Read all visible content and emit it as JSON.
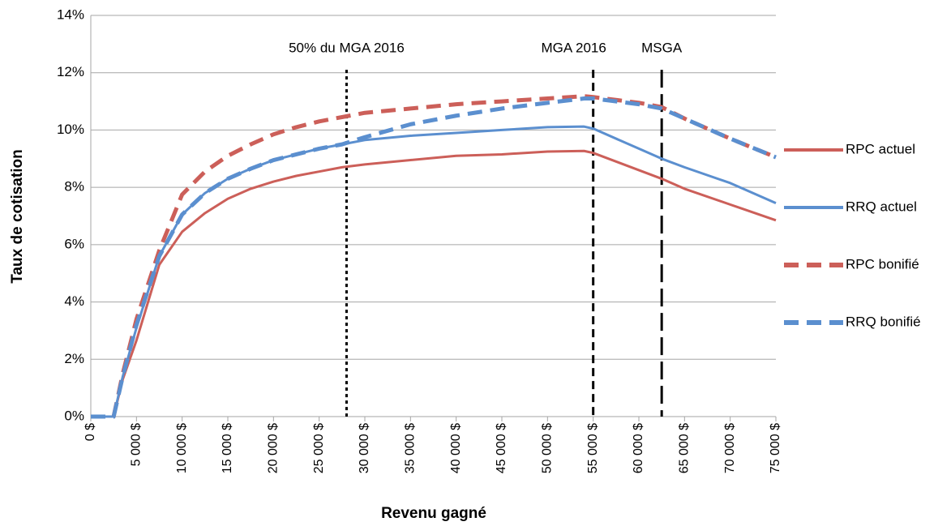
{
  "chart_data": {
    "type": "line",
    "y_label": "Taux de cotisation",
    "x_label": "Revenu gagné",
    "x": [
      0,
      2500,
      3500,
      5000,
      7500,
      10000,
      12500,
      15000,
      17500,
      20000,
      22500,
      25000,
      27500,
      30000,
      35000,
      40000,
      45000,
      50000,
      54000,
      55000,
      60000,
      62500,
      65000,
      70000,
      75000
    ],
    "series": [
      {
        "name": "RPC actuel",
        "color": "#cc5f59",
        "dash": "solid",
        "values": [
          0,
          0,
          1.3,
          2.66,
          5.3,
          6.45,
          7.1,
          7.6,
          7.95,
          8.2,
          8.4,
          8.55,
          8.7,
          8.8,
          8.95,
          9.1,
          9.15,
          9.25,
          9.27,
          9.2,
          8.6,
          8.3,
          7.95,
          7.4,
          6.85
        ]
      },
      {
        "name": "RRQ actuel",
        "color": "#5b8fcf",
        "dash": "solid",
        "values": [
          0,
          0,
          1.4,
          3.1,
          5.6,
          7.05,
          7.8,
          8.3,
          8.65,
          8.95,
          9.15,
          9.35,
          9.5,
          9.65,
          9.8,
          9.9,
          10.0,
          10.1,
          10.12,
          10.05,
          9.35,
          9.0,
          8.7,
          8.15,
          7.45
        ]
      },
      {
        "name": "RPC bonifié",
        "color": "#cc5f59",
        "dash": "dashed",
        "values": [
          0,
          0,
          1.5,
          3.4,
          5.8,
          7.75,
          8.55,
          9.1,
          9.5,
          9.85,
          10.1,
          10.3,
          10.45,
          10.6,
          10.75,
          10.9,
          11.0,
          11.1,
          11.18,
          11.15,
          10.95,
          10.8,
          10.4,
          9.7,
          9.05
        ]
      },
      {
        "name": "RRQ bonifié",
        "color": "#5b8fcf",
        "dash": "dashed",
        "values": [
          0,
          0,
          1.4,
          3.2,
          5.6,
          7.05,
          7.8,
          8.3,
          8.65,
          8.95,
          9.15,
          9.35,
          9.5,
          9.75,
          10.2,
          10.5,
          10.75,
          10.95,
          11.1,
          11.1,
          10.9,
          10.75,
          10.4,
          9.7,
          9.05
        ]
      }
    ],
    "xlim": [
      0,
      75000
    ],
    "xticks": [
      {
        "value": 0,
        "label": "0 $"
      },
      {
        "value": 5000,
        "label": "5 000 $"
      },
      {
        "value": 10000,
        "label": "10 000 $"
      },
      {
        "value": 15000,
        "label": "15 000 $"
      },
      {
        "value": 20000,
        "label": "20 000 $"
      },
      {
        "value": 25000,
        "label": "25 000 $"
      },
      {
        "value": 30000,
        "label": "30 000 $"
      },
      {
        "value": 35000,
        "label": "35 000 $"
      },
      {
        "value": 40000,
        "label": "40 000 $"
      },
      {
        "value": 45000,
        "label": "45 000 $"
      },
      {
        "value": 50000,
        "label": "50 000 $"
      },
      {
        "value": 55000,
        "label": "55 000 $"
      },
      {
        "value": 60000,
        "label": "60 000 $"
      },
      {
        "value": 65000,
        "label": "65 000 $"
      },
      {
        "value": 70000,
        "label": "70 000 $"
      },
      {
        "value": 75000,
        "label": "75 000 $"
      }
    ],
    "ylim": [
      0,
      14
    ],
    "yticks": [
      {
        "value": 0,
        "label": "0%"
      },
      {
        "value": 2,
        "label": "2%"
      },
      {
        "value": 4,
        "label": "4%"
      },
      {
        "value": 6,
        "label": "6%"
      },
      {
        "value": 8,
        "label": "8%"
      },
      {
        "value": 10,
        "label": "10%"
      },
      {
        "value": 12,
        "label": "12%"
      },
      {
        "value": 14,
        "label": "14%"
      }
    ],
    "grid": true,
    "legend": "right",
    "annotations": [
      {
        "text": "50% du MGA 2016",
        "x": 28000,
        "style": "dotted"
      },
      {
        "text": "MGA 2016",
        "x": 55000,
        "style": "dashed"
      },
      {
        "text": "MSGA",
        "x": 62500,
        "style": "long-dashed"
      }
    ]
  }
}
